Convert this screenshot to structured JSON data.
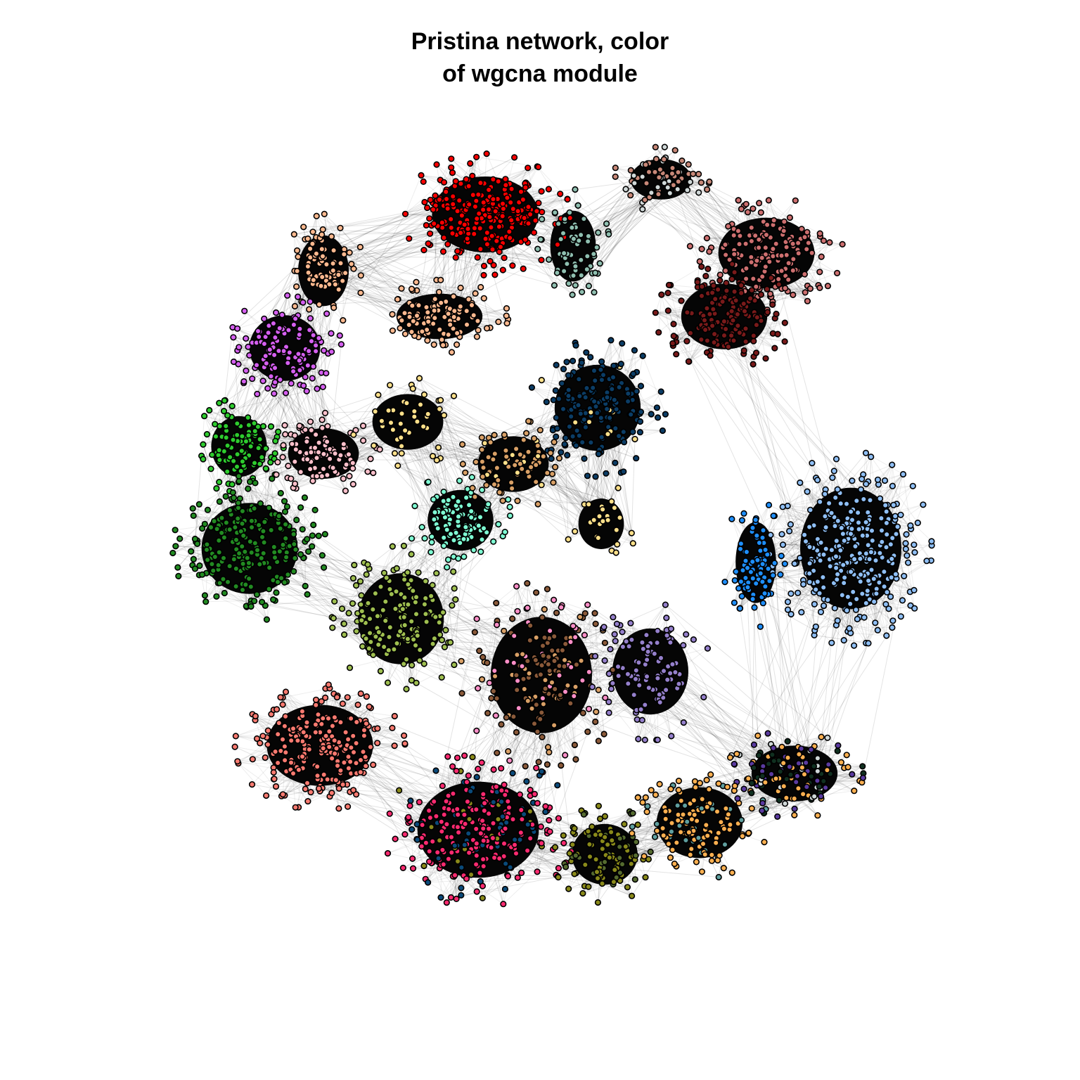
{
  "title": {
    "line1": "Pristina network, color",
    "line2": "of wgcna module"
  },
  "network": {
    "type": "force-directed network graph",
    "node_color_meaning": "wgcna module",
    "modules": [
      {
        "name": "red",
        "color": "#ff0000"
      },
      {
        "name": "darkseagreen",
        "color": "#8fbfb0"
      },
      {
        "name": "grey-salmon",
        "color": "#c88878"
      },
      {
        "name": "rosybrown",
        "color": "#cd6f6f"
      },
      {
        "name": "darkred",
        "color": "#7a1a1a"
      },
      {
        "name": "peach",
        "color": "#ffb98f"
      },
      {
        "name": "violet",
        "color": "#d55ff0"
      },
      {
        "name": "green",
        "color": "#2ecc2e"
      },
      {
        "name": "pink",
        "color": "#ffc0cb"
      },
      {
        "name": "lightyellow",
        "color": "#ffe08a"
      },
      {
        "name": "darkblue",
        "color": "#0b3d66"
      },
      {
        "name": "aquamarine",
        "color": "#7fffd4"
      },
      {
        "name": "tan",
        "color": "#d9a066"
      },
      {
        "name": "skyblue",
        "color": "#8fbff5"
      },
      {
        "name": "dodgerblue",
        "color": "#1e8fff"
      },
      {
        "name": "forestgreen",
        "color": "#228b22"
      },
      {
        "name": "olivegreen",
        "color": "#9fbf50"
      },
      {
        "name": "brown",
        "color": "#8b5a3a"
      },
      {
        "name": "lightpink",
        "color": "#ff8fc8"
      },
      {
        "name": "mediumpurple",
        "color": "#9580cc"
      },
      {
        "name": "salmon",
        "color": "#fa7a70"
      },
      {
        "name": "deeppink",
        "color": "#ff2a70"
      },
      {
        "name": "steelblue",
        "color": "#0a4a7a"
      },
      {
        "name": "olive",
        "color": "#8a8a1a"
      },
      {
        "name": "darkolive",
        "color": "#556b2f"
      },
      {
        "name": "orange",
        "color": "#ffb050"
      },
      {
        "name": "darkslate",
        "color": "#103020"
      },
      {
        "name": "indigo",
        "color": "#5a3aa0"
      },
      {
        "name": "lightgrey",
        "color": "#d0d8d8"
      },
      {
        "name": "cadetblue",
        "color": "#5f9f9f"
      }
    ]
  }
}
